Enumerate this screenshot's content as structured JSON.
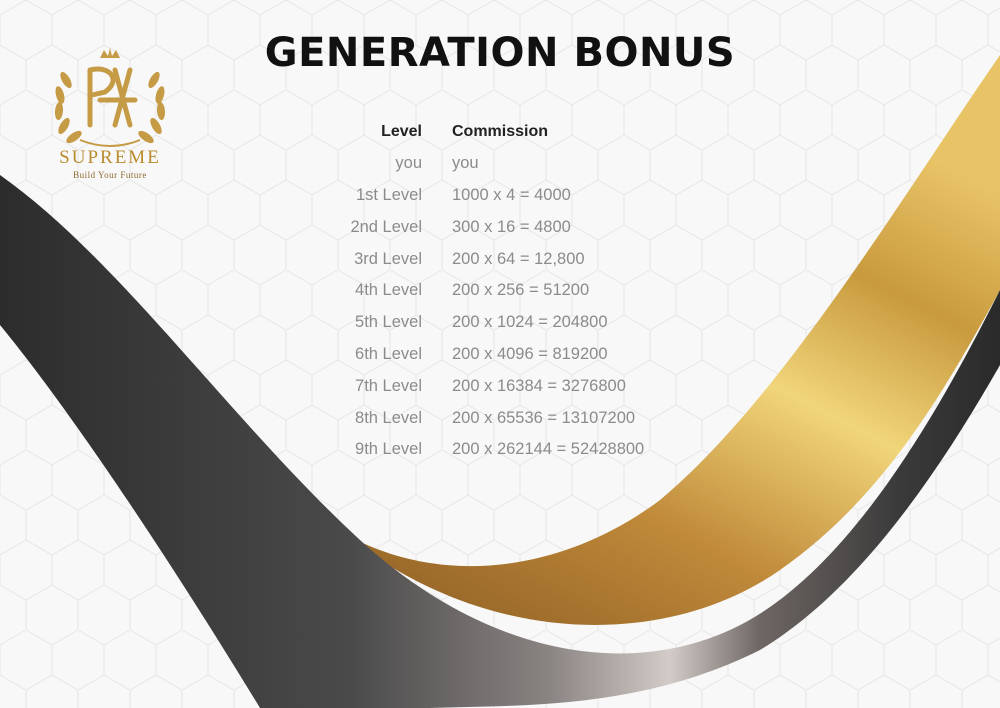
{
  "page": {
    "title": "GENERATION BONUS"
  },
  "brand": {
    "name": "SUPREME",
    "tagline": "Build Your Future",
    "colors": {
      "gold": "#c9a24a",
      "dark": "#2f2f2f"
    }
  },
  "table": {
    "headers": {
      "level": "Level",
      "commission": "Commission"
    },
    "rows": [
      {
        "level": "you",
        "commission": "you"
      },
      {
        "level": "1st Level",
        "commission": "1000 x 4 = 4000"
      },
      {
        "level": "2nd Level",
        "commission": "300 x 16 = 4800"
      },
      {
        "level": "3rd Level",
        "commission": "200 x 64 = 12,800"
      },
      {
        "level": "4th Level",
        "commission": "200 x 256 = 51200"
      },
      {
        "level": "5th Level",
        "commission": "200 x 1024 = 204800"
      },
      {
        "level": "6th Level",
        "commission": "200 x 4096 = 819200"
      },
      {
        "level": "7th Level",
        "commission": "200 x 16384 = 3276800"
      },
      {
        "level": "8th Level",
        "commission": "200 x 65536 = 13107200"
      },
      {
        "level": "9th Level",
        "commission": "200 x 262144 = 52428800"
      }
    ]
  }
}
